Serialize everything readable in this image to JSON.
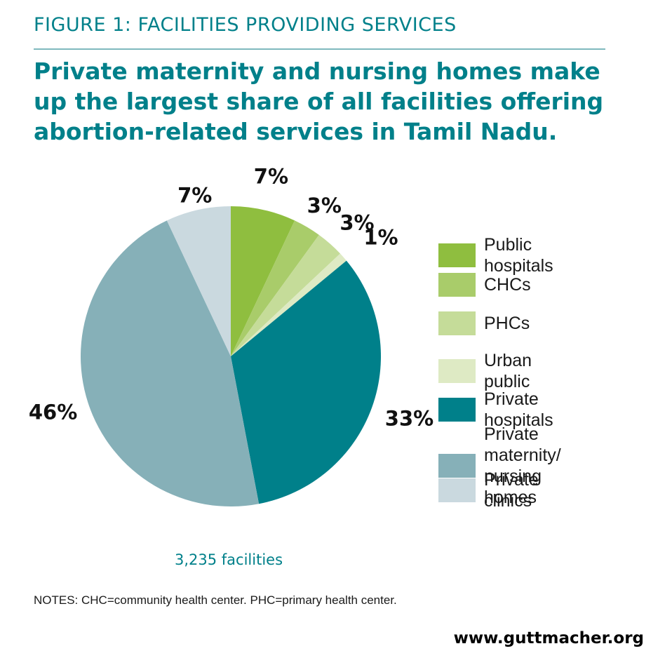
{
  "figure_label": "FIGURE 1: FACILITIES PROVIDING SERVICES",
  "headline_lines": [
    "Private maternity and nursing homes make",
    "up the largest share of all facilities offering",
    "abortion-related services in Tamil Nadu."
  ],
  "chart_data": {
    "type": "pie",
    "title": "",
    "total_label": "3,235 facilities",
    "legend_position": "right",
    "slices": [
      {
        "label": "Public hospitals",
        "value": 7,
        "value_label": "7%",
        "color": "#8fbe3f"
      },
      {
        "label": "CHCs",
        "value": 3,
        "value_label": "3%",
        "color": "#a9cc6a"
      },
      {
        "label": "PHCs",
        "value": 3,
        "value_label": "3%",
        "color": "#c5dc99"
      },
      {
        "label": "Urban public",
        "value": 1,
        "value_label": "1%",
        "color": "#deeac4"
      },
      {
        "label": "Private hospitals",
        "value": 33,
        "value_label": "33%",
        "color": "#00808a"
      },
      {
        "label": "Private maternity/\nnursing homes",
        "value": 46,
        "value_label": "46%",
        "color": "#86b0b8"
      },
      {
        "label": "Private clinics",
        "value": 7,
        "value_label": "7%",
        "color": "#cad9df"
      }
    ]
  },
  "notes": "NOTES: CHC=community health center. PHC=primary health center.",
  "site": "www.guttmacher.org"
}
